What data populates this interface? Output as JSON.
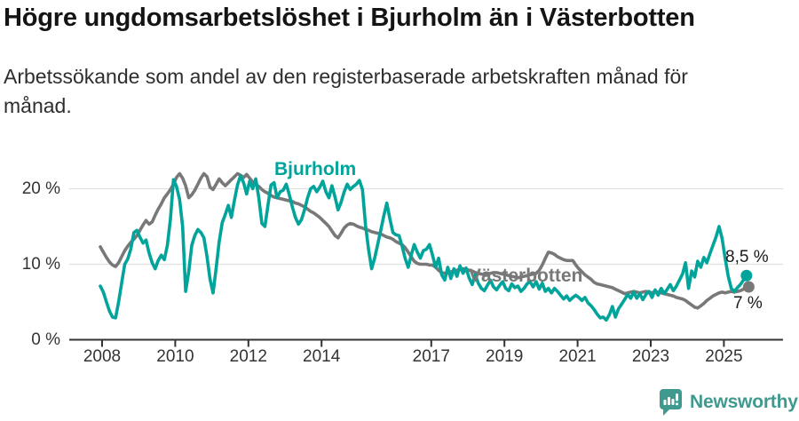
{
  "header": {
    "title": "Högre ungdomsarbetslöshet i Bjurholm än i Västerbotten",
    "subtitle": "Arbetssökande som andel av den registerbaserade arbetskraften månad för månad."
  },
  "colors": {
    "bjurholm": "#00a49b",
    "vasterbotten": "#787878",
    "grid": "#e0e0e0",
    "axis": "#333333",
    "value_label": "#1a1a1a",
    "brand": "#3f998e"
  },
  "footer": {
    "brand": "Newsworthy"
  },
  "chart_data": {
    "type": "line",
    "title": "Högre ungdomsarbetslöshet i Bjurholm än i Västerbotten",
    "xlabel": "",
    "ylabel": "Arbetssökande som andel av den registerbaserade arbetskraften",
    "x_unit": "month",
    "x_start": "2008-01",
    "x_end": "2025-09",
    "ylim": [
      0,
      24
    ],
    "grid": true,
    "legend_position": "inline-labels",
    "y_tick_values": [
      0,
      10,
      20
    ],
    "y_tick_labels": [
      "0 %",
      "10 %",
      "20 %"
    ],
    "x_tick_years": [
      2008,
      2010,
      2012,
      2014,
      2017,
      2019,
      2021,
      2023,
      2025
    ],
    "x_tick_labels": [
      "2008",
      "2010",
      "2012",
      "2014",
      "2017",
      "2019",
      "2021",
      "2023",
      "2025"
    ],
    "series": [
      {
        "name": "Bjurholm",
        "color": "#00a49b",
        "end_label": "8,5 %",
        "end_value": 8.5,
        "values": [
          7.1,
          6.3,
          5.0,
          3.8,
          3.0,
          2.9,
          5.0,
          7.5,
          10.0,
          10.7,
          12.0,
          14.2,
          14.5,
          13.6,
          12.8,
          13.2,
          11.5,
          10.2,
          9.4,
          10.5,
          11.2,
          10.6,
          12.5,
          16.0,
          21.2,
          20.3,
          18.6,
          15.0,
          6.4,
          9.0,
          12.5,
          13.8,
          14.6,
          14.2,
          13.5,
          11.0,
          8.0,
          6.2,
          9.5,
          13.0,
          15.5,
          16.6,
          17.8,
          16.2,
          18.5,
          20.5,
          21.7,
          20.8,
          19.3,
          21.0,
          20.0,
          21.3,
          18.8,
          15.4,
          15.0,
          17.8,
          20.5,
          20.8,
          18.8,
          19.6,
          19.8,
          20.6,
          19.2,
          17.6,
          16.2,
          15.3,
          15.9,
          17.2,
          18.8,
          20.0,
          20.3,
          19.6,
          20.2,
          21.0,
          19.6,
          18.8,
          20.4,
          18.9,
          17.2,
          18.2,
          19.6,
          20.6,
          19.9,
          20.3,
          20.6,
          21.1,
          19.9,
          15.2,
          12.0,
          9.4,
          10.8,
          12.6,
          14.5,
          16.4,
          18.1,
          16.0,
          14.2,
          13.9,
          13.8,
          12.4,
          10.8,
          9.6,
          11.2,
          12.6,
          11.6,
          10.8,
          11.8,
          12.0,
          12.6,
          11.2,
          9.6,
          10.8,
          8.6,
          7.9,
          9.6,
          8.1,
          9.4,
          8.4,
          9.8,
          8.8,
          9.5,
          8.2,
          7.3,
          8.6,
          7.5,
          6.8,
          6.5,
          7.2,
          7.9,
          7.0,
          6.6,
          7.2,
          7.7,
          6.8,
          6.5,
          7.4,
          6.9,
          7.1,
          6.4,
          6.8,
          7.4,
          7.7,
          7.0,
          7.7,
          6.7,
          7.5,
          6.4,
          6.8,
          6.2,
          6.8,
          6.4,
          5.9,
          5.4,
          5.8,
          5.2,
          5.6,
          5.9,
          5.6,
          5.2,
          5.6,
          4.9,
          4.5,
          4.0,
          3.4,
          2.9,
          3.0,
          2.6,
          3.3,
          4.4,
          3.0,
          4.1,
          4.7,
          5.3,
          6.0,
          5.5,
          6.3,
          5.5,
          6.1,
          5.3,
          6.0,
          6.4,
          5.6,
          6.6,
          5.9,
          6.8,
          6.1,
          6.7,
          7.3,
          6.5,
          7.1,
          7.9,
          8.7,
          10.2,
          6.8,
          9.1,
          8.3,
          10.4,
          9.6,
          10.9,
          10.2,
          11.4,
          12.5,
          13.6,
          15.0,
          13.4,
          10.8,
          8.4,
          6.8,
          6.4,
          6.9,
          7.3,
          7.9,
          8.5
        ]
      },
      {
        "name": "Västerbotten",
        "color": "#787878",
        "end_label": "7 %",
        "end_value": 7.0,
        "values": [
          12.3,
          11.6,
          10.9,
          10.3,
          9.9,
          9.7,
          10.2,
          11.0,
          11.8,
          12.4,
          12.9,
          13.3,
          13.8,
          14.5,
          15.2,
          15.8,
          15.3,
          15.6,
          16.5,
          17.3,
          18.0,
          18.8,
          19.3,
          19.9,
          20.6,
          21.5,
          22.0,
          21.4,
          20.4,
          18.8,
          19.2,
          19.8,
          20.6,
          21.4,
          22.0,
          21.6,
          20.2,
          19.9,
          20.6,
          21.3,
          20.8,
          20.4,
          20.8,
          21.2,
          21.6,
          22.0,
          21.8,
          21.5,
          21.9,
          21.4,
          20.9,
          20.6,
          20.3,
          19.9,
          19.6,
          19.4,
          19.1,
          18.9,
          18.8,
          18.7,
          18.6,
          18.5,
          18.4,
          18.3,
          18.1,
          18.0,
          17.8,
          17.6,
          17.3,
          17.0,
          16.8,
          16.5,
          16.2,
          15.8,
          15.4,
          15.0,
          14.4,
          13.8,
          13.5,
          14.1,
          14.8,
          15.2,
          15.4,
          15.3,
          15.1,
          14.9,
          14.8,
          14.6,
          14.5,
          14.3,
          14.2,
          14.1,
          14.0,
          13.8,
          13.6,
          13.5,
          13.3,
          13.0,
          12.8,
          12.6,
          12.2,
          11.6,
          11.0,
          10.4,
          10.1,
          10.0,
          10.0,
          10.0,
          9.9,
          9.9,
          9.6,
          9.2,
          8.9,
          8.8,
          8.9,
          9.0,
          9.1,
          9.2,
          9.3,
          9.4,
          9.3,
          9.2,
          9.1,
          8.9,
          8.8,
          8.7,
          8.6,
          8.7,
          8.8,
          8.9,
          8.9,
          8.8,
          8.7,
          8.6,
          8.5,
          8.4,
          8.3,
          8.2,
          8.3,
          8.4,
          8.5,
          8.6,
          8.7,
          8.8,
          9.2,
          9.9,
          10.8,
          11.6,
          11.5,
          11.3,
          11.0,
          10.8,
          10.6,
          10.5,
          10.5,
          10.5,
          9.9,
          9.4,
          9.0,
          8.6,
          8.3,
          8.0,
          7.6,
          7.4,
          7.3,
          7.2,
          7.1,
          7.0,
          6.9,
          6.7,
          6.5,
          6.3,
          6.1,
          6.2,
          6.3,
          6.4,
          6.3,
          6.2,
          6.3,
          6.4,
          6.3,
          6.2,
          6.4,
          6.3,
          6.2,
          6.1,
          6.0,
          5.9,
          5.8,
          5.6,
          5.5,
          5.4,
          5.2,
          4.9,
          4.6,
          4.3,
          4.2,
          4.5,
          4.8,
          5.2,
          5.5,
          5.8,
          6.0,
          6.2,
          6.3,
          6.2,
          6.3,
          6.4,
          6.3,
          6.4,
          6.5,
          6.7,
          7.0
        ]
      }
    ]
  }
}
